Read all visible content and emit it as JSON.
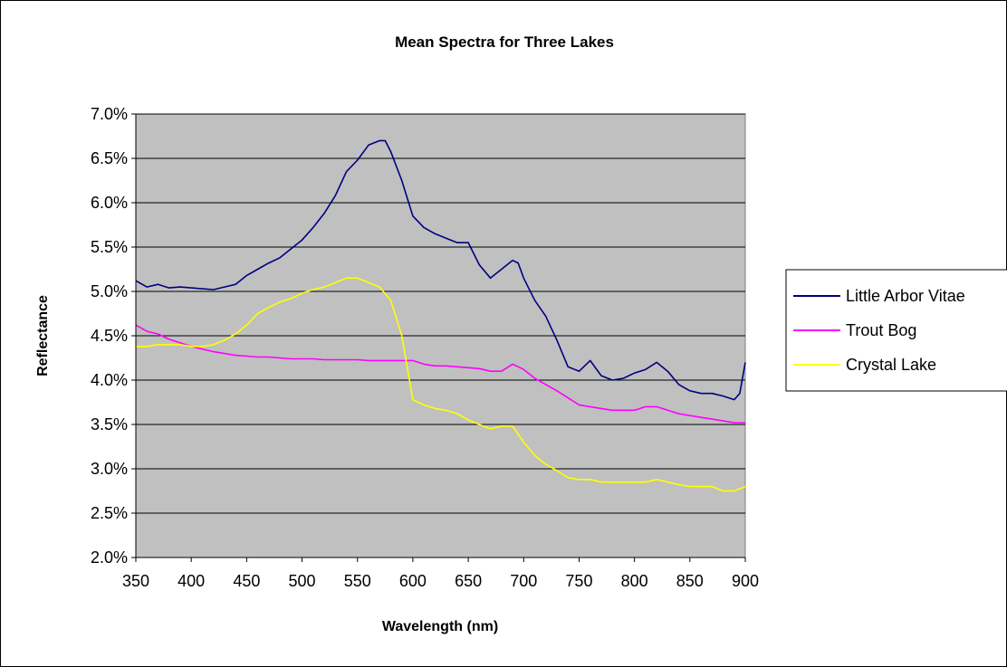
{
  "chart_data": {
    "type": "line",
    "title": "Mean Spectra for Three Lakes",
    "xlabel": "Wavelength (nm)",
    "ylabel": "Reflectance",
    "xlim": [
      350,
      900
    ],
    "ylim": [
      0.02,
      0.07
    ],
    "x_ticks": [
      "350",
      "400",
      "450",
      "500",
      "550",
      "600",
      "650",
      "700",
      "750",
      "800",
      "850",
      "900"
    ],
    "y_ticks": [
      "2.0%",
      "2.5%",
      "3.0%",
      "3.5%",
      "4.0%",
      "4.5%",
      "5.0%",
      "5.5%",
      "6.0%",
      "6.5%",
      "7.0%"
    ],
    "grid": true,
    "plot_background": "#c0c0c0",
    "legend_position": "right",
    "series": [
      {
        "name": "Little Arbor Vitae",
        "color": "#000080",
        "x": [
          350,
          360,
          370,
          380,
          390,
          400,
          410,
          420,
          430,
          440,
          450,
          460,
          470,
          480,
          490,
          500,
          510,
          520,
          530,
          540,
          550,
          560,
          570,
          575,
          580,
          590,
          600,
          610,
          620,
          630,
          640,
          650,
          660,
          670,
          680,
          690,
          695,
          700,
          710,
          720,
          730,
          740,
          750,
          760,
          770,
          780,
          790,
          800,
          810,
          820,
          830,
          840,
          850,
          860,
          870,
          880,
          890,
          895,
          900
        ],
        "y": [
          0.0512,
          0.0505,
          0.0508,
          0.0504,
          0.0505,
          0.0504,
          0.0503,
          0.0502,
          0.0505,
          0.0508,
          0.0518,
          0.0525,
          0.0532,
          0.0538,
          0.0548,
          0.0558,
          0.0572,
          0.0588,
          0.0608,
          0.0635,
          0.0648,
          0.0665,
          0.067,
          0.067,
          0.0658,
          0.0625,
          0.0585,
          0.0572,
          0.0565,
          0.056,
          0.0555,
          0.0555,
          0.053,
          0.0515,
          0.0525,
          0.0535,
          0.0532,
          0.0515,
          0.049,
          0.0472,
          0.0445,
          0.0415,
          0.041,
          0.0422,
          0.0405,
          0.04,
          0.0402,
          0.0408,
          0.0412,
          0.042,
          0.041,
          0.0395,
          0.0388,
          0.0385,
          0.0385,
          0.0382,
          0.0378,
          0.0385,
          0.042
        ]
      },
      {
        "name": "Trout Bog",
        "color": "#ff00ff",
        "x": [
          350,
          360,
          370,
          380,
          390,
          400,
          410,
          420,
          430,
          440,
          450,
          460,
          470,
          480,
          490,
          500,
          510,
          520,
          530,
          540,
          550,
          560,
          570,
          580,
          590,
          600,
          610,
          620,
          630,
          640,
          650,
          660,
          670,
          680,
          690,
          700,
          710,
          720,
          730,
          740,
          750,
          760,
          770,
          780,
          790,
          800,
          810,
          820,
          830,
          840,
          850,
          860,
          870,
          880,
          890,
          900
        ],
        "y": [
          0.0462,
          0.0455,
          0.0452,
          0.0446,
          0.0442,
          0.0438,
          0.0435,
          0.0432,
          0.043,
          0.0428,
          0.0427,
          0.0426,
          0.0426,
          0.0425,
          0.0424,
          0.0424,
          0.0424,
          0.0423,
          0.0423,
          0.0423,
          0.0423,
          0.0422,
          0.0422,
          0.0422,
          0.0422,
          0.0422,
          0.0418,
          0.0416,
          0.0416,
          0.0415,
          0.0414,
          0.0413,
          0.041,
          0.041,
          0.0418,
          0.0412,
          0.0402,
          0.0395,
          0.0388,
          0.038,
          0.0372,
          0.037,
          0.0368,
          0.0366,
          0.0366,
          0.0366,
          0.037,
          0.037,
          0.0366,
          0.0362,
          0.036,
          0.0358,
          0.0356,
          0.0354,
          0.0352,
          0.0352
        ]
      },
      {
        "name": "Crystal Lake",
        "color": "#ffff00",
        "x": [
          350,
          360,
          370,
          380,
          390,
          400,
          410,
          420,
          430,
          440,
          450,
          460,
          470,
          480,
          490,
          500,
          510,
          520,
          530,
          540,
          550,
          560,
          570,
          580,
          590,
          600,
          610,
          620,
          630,
          640,
          650,
          660,
          670,
          680,
          690,
          700,
          710,
          720,
          730,
          740,
          750,
          760,
          770,
          780,
          790,
          800,
          810,
          820,
          830,
          840,
          850,
          860,
          870,
          880,
          890,
          900
        ],
        "y": [
          0.0438,
          0.0438,
          0.044,
          0.044,
          0.044,
          0.0438,
          0.0438,
          0.044,
          0.0445,
          0.0452,
          0.0462,
          0.0475,
          0.0482,
          0.0488,
          0.0492,
          0.0498,
          0.0502,
          0.0505,
          0.051,
          0.0515,
          0.0515,
          0.051,
          0.0505,
          0.049,
          0.045,
          0.0378,
          0.0372,
          0.0368,
          0.0366,
          0.0362,
          0.0355,
          0.035,
          0.0345,
          0.0348,
          0.0348,
          0.033,
          0.0315,
          0.0305,
          0.0298,
          0.029,
          0.0288,
          0.0288,
          0.0285,
          0.0285,
          0.0285,
          0.0285,
          0.0285,
          0.0288,
          0.0285,
          0.0282,
          0.028,
          0.028,
          0.028,
          0.0275,
          0.0275,
          0.028
        ]
      }
    ]
  }
}
